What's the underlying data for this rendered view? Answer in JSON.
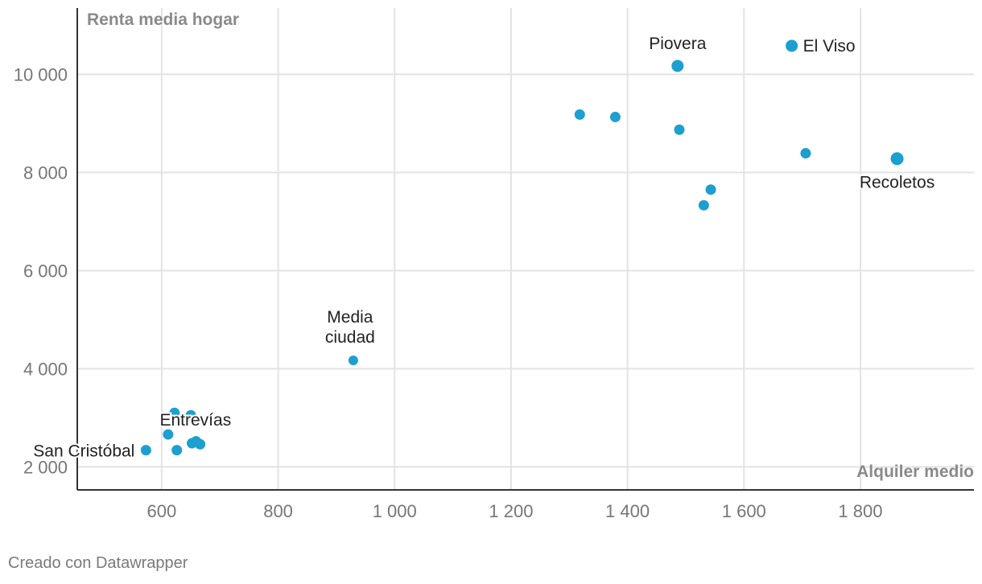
{
  "chart_data": {
    "type": "scatter",
    "title": "",
    "xlabel": "Alquiler medio",
    "ylabel": "Renta media hogar",
    "xlim": [
      455,
      1995
    ],
    "ylim": [
      1530,
      11350
    ],
    "xticks": [
      600,
      800,
      1000,
      1200,
      1400,
      1600,
      1800
    ],
    "xtick_labels": [
      "600",
      "800",
      "1 000",
      "1 200",
      "1 400",
      "1 600",
      "1 800"
    ],
    "yticks": [
      2000,
      4000,
      6000,
      8000,
      10000
    ],
    "ytick_labels": [
      "2 000",
      "4 000",
      "6 000",
      "8 000",
      "10 000"
    ],
    "grid": true,
    "point_color": "#1d9fd0",
    "points": [
      {
        "x": 1682,
        "y": 10580,
        "label": "El Viso"
      },
      {
        "x": 1486,
        "y": 10170,
        "label": "Piovera"
      },
      {
        "x": 1863,
        "y": 8280,
        "label": "Recoletos"
      },
      {
        "x": 929,
        "y": 4170,
        "label": "Media ciudad"
      },
      {
        "x": 573,
        "y": 2340,
        "label": "San Cristóbal"
      },
      {
        "x": 611,
        "y": 2660,
        "label": "Entrevías"
      },
      {
        "x": 1318,
        "y": 9180,
        "label": ""
      },
      {
        "x": 1379,
        "y": 9130,
        "label": ""
      },
      {
        "x": 1489,
        "y": 8870,
        "label": ""
      },
      {
        "x": 1706,
        "y": 8390,
        "label": ""
      },
      {
        "x": 1543,
        "y": 7650,
        "label": ""
      },
      {
        "x": 1531,
        "y": 7330,
        "label": ""
      },
      {
        "x": 626,
        "y": 2340,
        "label": ""
      },
      {
        "x": 652,
        "y": 2480,
        "label": ""
      },
      {
        "x": 659,
        "y": 2520,
        "label": ""
      },
      {
        "x": 666,
        "y": 2460,
        "label": ""
      },
      {
        "x": 622,
        "y": 3100,
        "label": ""
      },
      {
        "x": 650,
        "y": 3050,
        "label": ""
      }
    ]
  },
  "footer": {
    "credit": "Creado con Datawrapper"
  }
}
